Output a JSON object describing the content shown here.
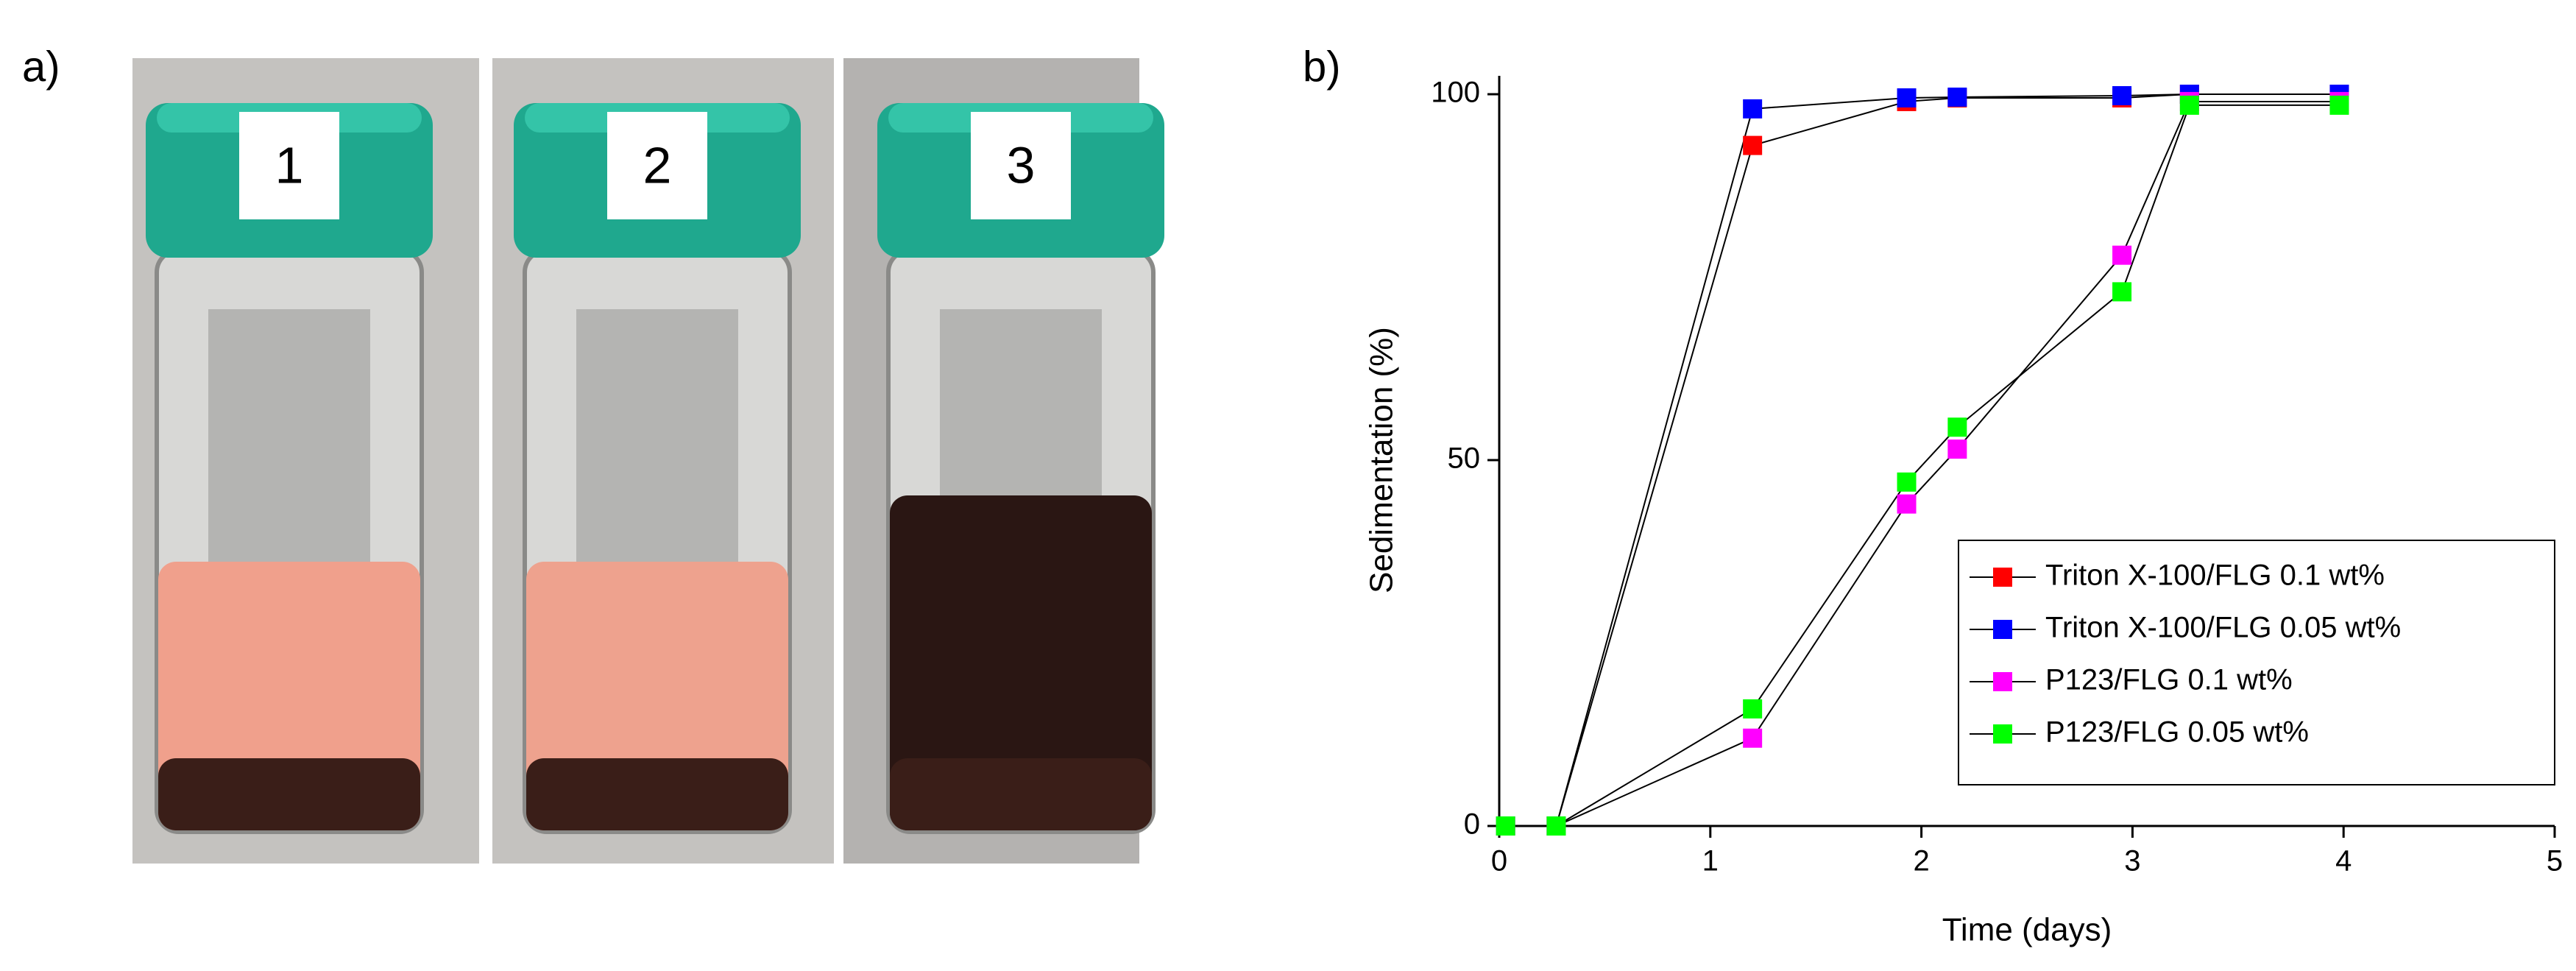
{
  "panel_labels": {
    "a": "a)",
    "b": "b)"
  },
  "vial_labels": [
    "1",
    "2",
    "3"
  ],
  "chart_data": {
    "type": "line",
    "xlabel": "Time (days)",
    "ylabel": "Sedimentation (%)",
    "x": [
      0.03,
      0.27,
      1.2,
      1.93,
      2.17,
      2.95,
      3.27,
      3.98
    ],
    "series": [
      {
        "name": "Triton X-100/FLG 0.1 wt%",
        "color": "#ff0000",
        "values": [
          0,
          0,
          93,
          99,
          99.5,
          99.5,
          100,
          100
        ]
      },
      {
        "name": "Triton X-100/FLG 0.05 wt%",
        "color": "#0000ff",
        "values": [
          0,
          0,
          98,
          99.5,
          99.6,
          99.8,
          100,
          100
        ]
      },
      {
        "name": "P123/FLG 0.1 wt%",
        "color": "#ff00ff",
        "values": [
          0,
          0,
          12,
          44,
          51.5,
          78,
          99,
          99
        ]
      },
      {
        "name": "P123/FLG 0.05 wt%",
        "color": "#00ff00",
        "values": [
          0,
          0,
          16,
          47,
          54.5,
          73,
          98.5,
          98.5
        ]
      }
    ],
    "xlim": [
      0,
      5
    ],
    "xticks": [
      0,
      1,
      2,
      3,
      4,
      5
    ],
    "ylim": [
      0,
      100
    ],
    "yticks": [
      0,
      50,
      100
    ],
    "legend": "lower right"
  }
}
